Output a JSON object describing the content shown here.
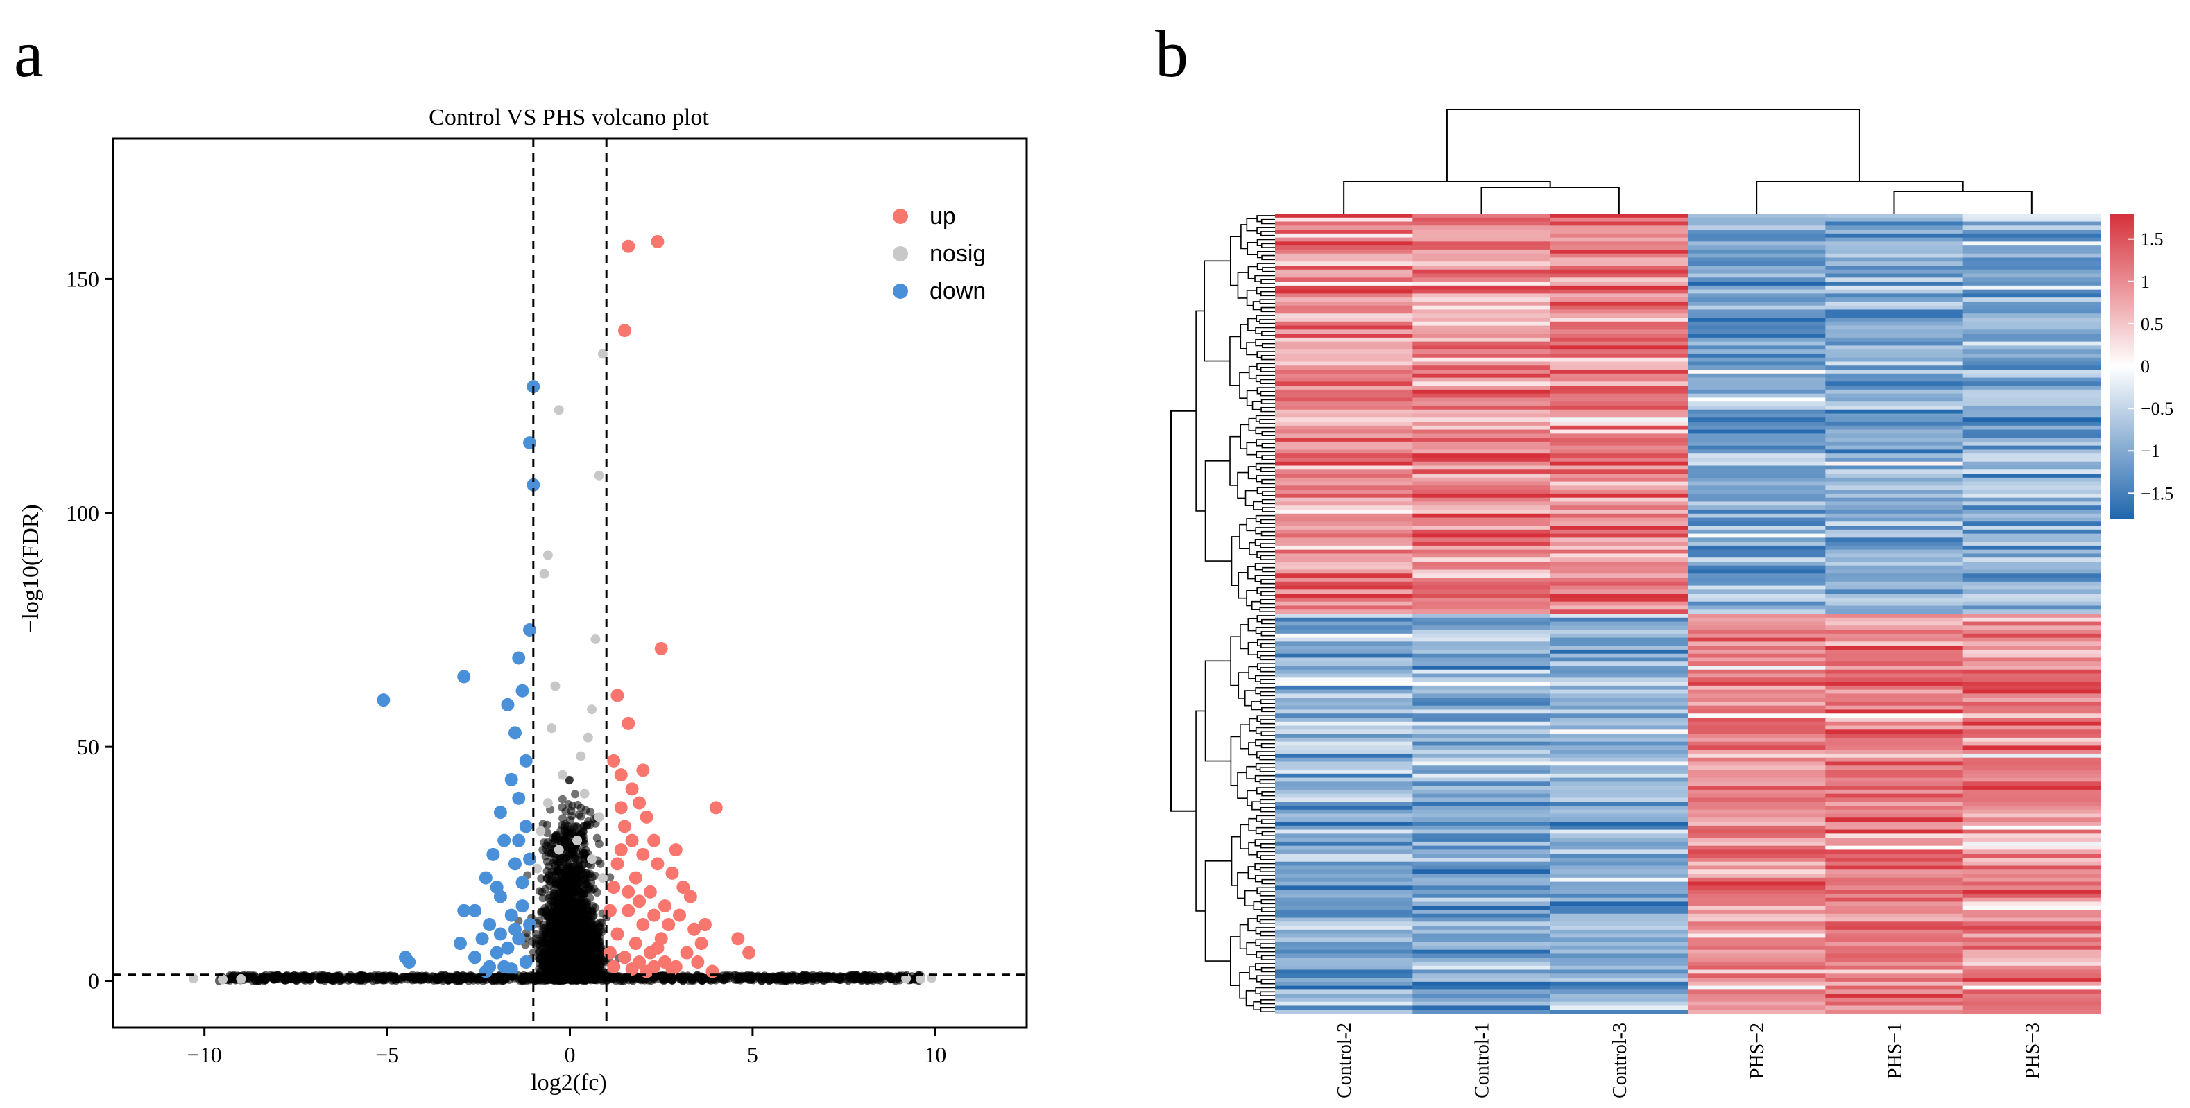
{
  "panels": {
    "a": "a",
    "b": "b"
  },
  "chart_data": [
    {
      "type": "scatter",
      "title": "Control VS PHS volcano plot",
      "xlabel": "log2(fc)",
      "ylabel": "−log10(FDR)",
      "xlim": [
        -12.5,
        12.5
      ],
      "ylim": [
        -10,
        180
      ],
      "xticks": [
        -10,
        -5,
        0,
        5,
        10
      ],
      "xtick_labels": [
        "−10",
        "−5",
        "0",
        "5",
        "10"
      ],
      "yticks": [
        0,
        50,
        100,
        150
      ],
      "ytick_labels": [
        "0",
        "50",
        "100",
        "150"
      ],
      "thresholds": {
        "log2fc": [
          -1,
          1
        ],
        "neg_log10_fdr": 1.3
      },
      "grid": false,
      "legend_position": "top-right",
      "legend": [
        {
          "name": "up",
          "color": "#F8766D"
        },
        {
          "name": "nosig",
          "color": "#C8C8C8"
        },
        {
          "name": "down",
          "color": "#4A90D9"
        }
      ],
      "series": [
        {
          "name": "up",
          "points": [
            [
              1.6,
              157
            ],
            [
              2.4,
              158
            ],
            [
              1.5,
              139
            ],
            [
              2.5,
              71
            ],
            [
              4.0,
              37
            ],
            [
              4.9,
              6
            ],
            [
              4.6,
              9
            ],
            [
              1.3,
              61
            ],
            [
              1.6,
              55
            ],
            [
              1.2,
              47
            ],
            [
              1.4,
              44
            ],
            [
              1.7,
              41
            ],
            [
              1.9,
              38
            ],
            [
              2.1,
              35
            ],
            [
              2.3,
              30
            ],
            [
              1.5,
              33
            ],
            [
              2.0,
              27
            ],
            [
              2.4,
              25
            ],
            [
              2.8,
              23
            ],
            [
              3.1,
              20
            ],
            [
              3.3,
              18
            ],
            [
              2.6,
              16
            ],
            [
              3.0,
              14
            ],
            [
              3.4,
              11
            ],
            [
              3.6,
              8
            ],
            [
              1.8,
              22
            ],
            [
              1.4,
              28
            ],
            [
              2.2,
              19
            ],
            [
              2.7,
              12
            ],
            [
              1.2,
              20
            ],
            [
              1.6,
              15
            ],
            [
              2.0,
              12
            ],
            [
              2.5,
              9
            ],
            [
              3.2,
              6
            ],
            [
              3.5,
              4
            ],
            [
              1.3,
              10
            ],
            [
              1.8,
              8
            ],
            [
              2.2,
              6
            ],
            [
              2.6,
              4
            ],
            [
              2.9,
              3
            ],
            [
              1.1,
              6
            ],
            [
              1.5,
              5
            ],
            [
              1.9,
              4
            ],
            [
              2.3,
              3
            ],
            [
              2.8,
              2.5
            ],
            [
              3.9,
              2
            ],
            [
              1.2,
              3
            ],
            [
              1.7,
              2.5
            ],
            [
              2.1,
              2
            ],
            [
              2.4,
              7
            ],
            [
              1.9,
              17
            ],
            [
              2.3,
              14
            ],
            [
              3.7,
              12
            ],
            [
              1.4,
              37
            ],
            [
              1.1,
              15
            ],
            [
              1.3,
              25
            ],
            [
              1.7,
              30
            ],
            [
              2.0,
              45
            ],
            [
              2.9,
              28
            ],
            [
              1.6,
              19
            ]
          ]
        },
        {
          "name": "down",
          "points": [
            [
              -1.0,
              127
            ],
            [
              -1.1,
              115
            ],
            [
              -1.0,
              106
            ],
            [
              -1.1,
              75
            ],
            [
              -5.1,
              60
            ],
            [
              -2.9,
              65
            ],
            [
              -1.4,
              69
            ],
            [
              -1.3,
              62
            ],
            [
              -1.7,
              59
            ],
            [
              -1.5,
              53
            ],
            [
              -1.2,
              47
            ],
            [
              -1.6,
              43
            ],
            [
              -1.9,
              36
            ],
            [
              -1.4,
              39
            ],
            [
              -1.2,
              33
            ],
            [
              -1.8,
              30
            ],
            [
              -2.1,
              27
            ],
            [
              -1.5,
              25
            ],
            [
              -2.3,
              22
            ],
            [
              -1.3,
              21
            ],
            [
              -1.9,
              18
            ],
            [
              -2.6,
              15
            ],
            [
              -2.9,
              15
            ],
            [
              -1.6,
              14
            ],
            [
              -2.2,
              12
            ],
            [
              -3.0,
              8
            ],
            [
              -4.5,
              5
            ],
            [
              -4.4,
              4
            ],
            [
              -2.6,
              5
            ],
            [
              -2.0,
              6
            ],
            [
              -1.4,
              9
            ],
            [
              -1.8,
              3
            ],
            [
              -2.3,
              2
            ],
            [
              -1.2,
              4
            ],
            [
              -1.6,
              2.5
            ],
            [
              -1.1,
              12
            ],
            [
              -1.5,
              11
            ],
            [
              -2.4,
              9
            ],
            [
              -1.7,
              7
            ],
            [
              -1.3,
              16
            ],
            [
              -2.0,
              20
            ],
            [
              -1.1,
              26
            ],
            [
              -1.4,
              30
            ],
            [
              -2.2,
              3
            ],
            [
              -1.9,
              10
            ]
          ]
        },
        {
          "name": "nosig",
          "points": [
            [
              0.9,
              134
            ],
            [
              -0.3,
              122
            ],
            [
              0.8,
              108
            ],
            [
              -0.6,
              91
            ],
            [
              -0.7,
              87
            ],
            [
              0.7,
              73
            ],
            [
              -0.4,
              63
            ],
            [
              0.6,
              58
            ],
            [
              0.5,
              52
            ],
            [
              -0.5,
              54
            ],
            [
              0.3,
              48
            ],
            [
              -0.2,
              44
            ],
            [
              0.4,
              40
            ],
            [
              -0.6,
              38
            ],
            [
              0.8,
              35
            ],
            [
              -0.8,
              32
            ],
            [
              0.2,
              30
            ],
            [
              -0.3,
              28
            ],
            [
              0.6,
              26
            ],
            [
              -0.9,
              24
            ],
            [
              0.9,
              22
            ],
            [
              -10.3,
              0.5
            ],
            [
              -9.5,
              0.3
            ],
            [
              9.6,
              0.4
            ],
            [
              9.9,
              0.6
            ],
            [
              -9.0,
              0.4
            ],
            [
              9.2,
              0.5
            ]
          ]
        }
      ]
    },
    {
      "type": "heatmap",
      "columns": [
        "Control-2",
        "Control-1",
        "Control-3",
        "PHS−2",
        "PHS−1",
        "PHS−3"
      ],
      "rows": 200,
      "color_scale": {
        "min": -1.8,
        "max": 1.8,
        "low": "#2166AC",
        "mid": "#FFFFFF",
        "high": "#D6303A"
      },
      "colorbar_ticks": [
        1.5,
        1,
        0.5,
        0,
        -0.5,
        -1,
        -1.5
      ],
      "colorbar_labels": [
        "1.5",
        "1",
        "0.5",
        "0",
        "−0.5",
        "−1",
        "−1.5"
      ],
      "cluster_1": {
        "rows": 100,
        "means": [
          1.0,
          1.05,
          1.1,
          -1.0,
          -0.95,
          -0.9
        ]
      },
      "cluster_2": {
        "rows": 100,
        "means": [
          -0.95,
          -1.05,
          -1.0,
          1.0,
          1.1,
          1.05
        ]
      },
      "column_dendrogram": "((Control-2,(Control-1,Control-3)),(PHS−2,(PHS−1,PHS−3)))"
    }
  ]
}
